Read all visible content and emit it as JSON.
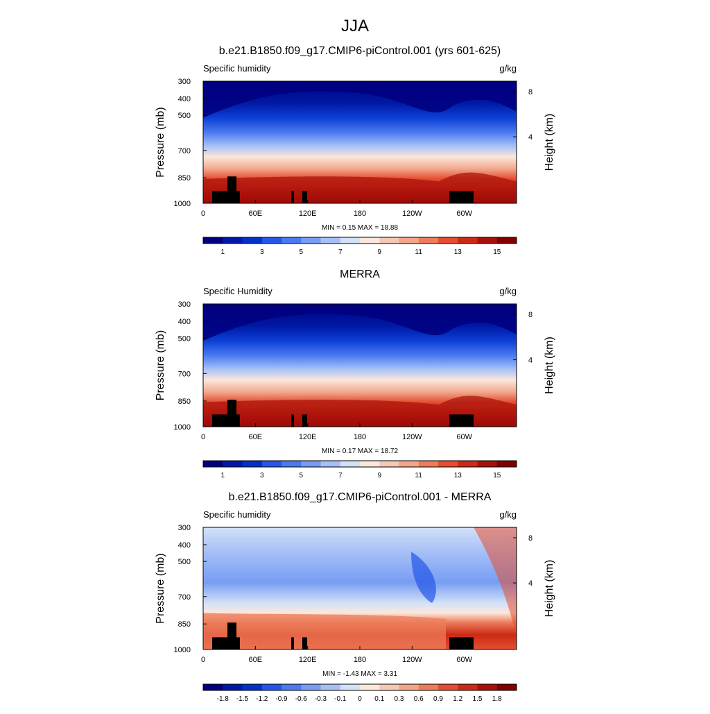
{
  "figure": {
    "title": "JJA"
  },
  "chart_data": [
    {
      "type": "heatmap",
      "title": "b.e21.B1850.f09_g17.CMIP6-piControl.001 (yrs 601-625)",
      "left_label": "Specific humidity",
      "right_label": "g/kg",
      "ylabel": "Pressure (mb)",
      "ylabel_right": "Height (km)",
      "x_ticks": [
        "0",
        "60E",
        "120E",
        "180",
        "120W",
        "60W"
      ],
      "y_ticks": [
        "300",
        "400",
        "500",
        "700",
        "850",
        "1000"
      ],
      "height_ticks": [
        "8",
        "4"
      ],
      "stats": "MIN =   0.15  MAX =  18.88",
      "min": 0.15,
      "max": 18.88,
      "colorbar_labels": [
        "1",
        "3",
        "5",
        "7",
        "9",
        "11",
        "13",
        "15"
      ]
    },
    {
      "type": "heatmap",
      "title": "MERRA",
      "left_label": "Specific Humidity",
      "right_label": "g/kg",
      "ylabel": "Pressure (mb)",
      "ylabel_right": "Height (km)",
      "x_ticks": [
        "0",
        "60E",
        "120E",
        "180",
        "120W",
        "60W"
      ],
      "y_ticks": [
        "300",
        "400",
        "500",
        "700",
        "850",
        "1000"
      ],
      "height_ticks": [
        "8",
        "4"
      ],
      "stats": "MIN =   0.17  MAX =  18.72",
      "min": 0.17,
      "max": 18.72,
      "colorbar_labels": [
        "1",
        "3",
        "5",
        "7",
        "9",
        "11",
        "13",
        "15"
      ]
    },
    {
      "type": "heatmap",
      "title": "b.e21.B1850.f09_g17.CMIP6-piControl.001 - MERRA",
      "left_label": "Specific humidity",
      "right_label": "g/kg",
      "ylabel": "Pressure (mb)",
      "ylabel_right": "Height (km)",
      "x_ticks": [
        "0",
        "60E",
        "120E",
        "180",
        "120W",
        "60W"
      ],
      "y_ticks": [
        "300",
        "400",
        "500",
        "700",
        "850",
        "1000"
      ],
      "height_ticks": [
        "8",
        "4"
      ],
      "stats": "MIN =  -1.43  MAX =   3.31",
      "min": -1.43,
      "max": 3.31,
      "colorbar_labels": [
        "-1.8",
        "-1.5",
        "-1.2",
        "-0.9",
        "-0.6",
        "-0.3",
        "-0.1",
        "0",
        "0.1",
        "0.3",
        "0.6",
        "0.9",
        "1.2",
        "1.5",
        "1.8"
      ]
    }
  ],
  "palettes": {
    "absolute": [
      "#00007f",
      "#0019a5",
      "#0031c8",
      "#2356e8",
      "#4a7af0",
      "#779df3",
      "#a6c0f6",
      "#d3e1f8",
      "#fbe7dc",
      "#f6c8b2",
      "#f2a68a",
      "#ec7c5a",
      "#e44e31",
      "#cc2a14",
      "#a8100a",
      "#7f0000"
    ],
    "difference": [
      "#00007f",
      "#0019a5",
      "#0031c8",
      "#2356e8",
      "#4a7af0",
      "#779df3",
      "#a6c0f6",
      "#d3e1f8",
      "#fbe7dc",
      "#f6c8b2",
      "#f2a68a",
      "#ec7c5a",
      "#e44e31",
      "#cc2a14",
      "#a8100a",
      "#7f0000"
    ]
  }
}
